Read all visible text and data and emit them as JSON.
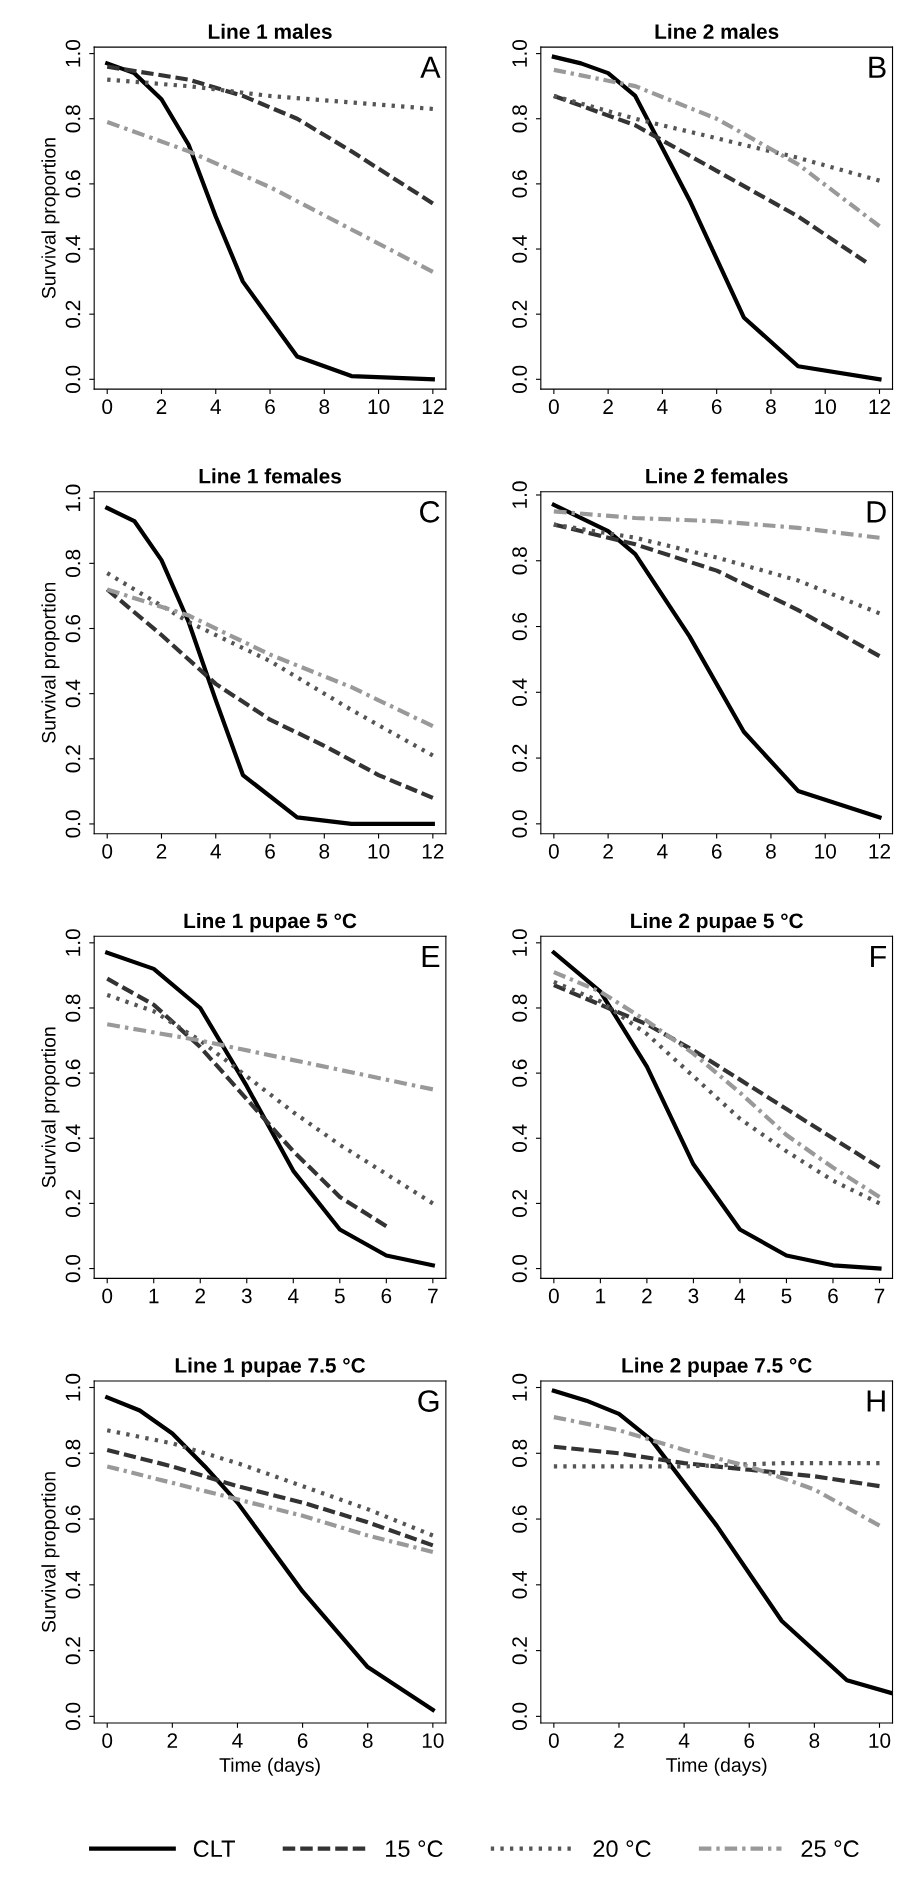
{
  "chart_data": [
    {
      "type": "line",
      "title": "Line 1 males",
      "annotations": [
        "A"
      ],
      "ylabel": "Survival proportion",
      "xlim": [
        -0.48,
        12.48
      ],
      "ylim": [
        -0.03,
        1.02
      ],
      "xticks": [
        0,
        2,
        4,
        6,
        8,
        10,
        12
      ],
      "yticks": [
        {
          "value": 0,
          "label": "0.0"
        },
        {
          "value": 0.2,
          "label": "0.2"
        },
        {
          "value": 0.4,
          "label": "0.4"
        },
        {
          "value": 0.6,
          "label": "0.6"
        },
        {
          "value": 0.8,
          "label": "0.8"
        },
        {
          "value": 1,
          "label": "1.0"
        }
      ],
      "legend": "bottom",
      "series": [
        {
          "name": "CLT",
          "color": "#000000",
          "line_style": "solid",
          "x": [
            0,
            1,
            2,
            3,
            4,
            5,
            7,
            9,
            12
          ],
          "values": [
            0.97,
            0.94,
            0.86,
            0.72,
            0.5,
            0.3,
            0.07,
            0.01,
            0.0
          ]
        },
        {
          "name": "15 °C",
          "color": "#333333",
          "line_style": "dashed",
          "x": [
            0,
            3,
            5,
            7,
            9,
            12
          ],
          "values": [
            0.96,
            0.92,
            0.87,
            0.8,
            0.7,
            0.54
          ]
        },
        {
          "name": "20 °C",
          "color": "#555555",
          "line_style": "dotted",
          "x": [
            0,
            3,
            6,
            9,
            12
          ],
          "values": [
            0.92,
            0.9,
            0.87,
            0.85,
            0.83
          ]
        },
        {
          "name": "25 °C",
          "color": "#999999",
          "line_style": "dashdot",
          "x": [
            0,
            3,
            6,
            9,
            12
          ],
          "values": [
            0.79,
            0.7,
            0.59,
            0.46,
            0.33
          ]
        }
      ]
    },
    {
      "type": "line",
      "title": "Line 2 males",
      "annotations": [
        "B"
      ],
      "xlim": [
        -0.48,
        12.48
      ],
      "ylim": [
        -0.03,
        1.02
      ],
      "xticks": [
        0,
        2,
        4,
        6,
        8,
        10,
        12
      ],
      "yticks": [
        {
          "value": 0,
          "label": "0.0"
        },
        {
          "value": 0.2,
          "label": "0.2"
        },
        {
          "value": 0.4,
          "label": "0.4"
        },
        {
          "value": 0.6,
          "label": "0.6"
        },
        {
          "value": 0.8,
          "label": "0.8"
        },
        {
          "value": 1,
          "label": "1.0"
        }
      ],
      "series": [
        {
          "color": "#000000",
          "line_style": "solid",
          "x": [
            0,
            1,
            2,
            3,
            5,
            7,
            9,
            12
          ],
          "values": [
            0.99,
            0.97,
            0.94,
            0.87,
            0.55,
            0.19,
            0.04,
            0.0
          ]
        },
        {
          "color": "#333333",
          "line_style": "dashed",
          "x": [
            0,
            3,
            6,
            9,
            11.5
          ],
          "values": [
            0.87,
            0.78,
            0.64,
            0.5,
            0.36
          ]
        },
        {
          "color": "#555555",
          "line_style": "dotted",
          "x": [
            0,
            3,
            6,
            9,
            12
          ],
          "values": [
            0.87,
            0.8,
            0.74,
            0.68,
            0.61
          ]
        },
        {
          "color": "#999999",
          "line_style": "dashdot",
          "x": [
            0,
            3,
            6,
            9,
            12
          ],
          "values": [
            0.95,
            0.9,
            0.8,
            0.66,
            0.47
          ]
        }
      ]
    },
    {
      "type": "line",
      "title": "Line 1 females",
      "annotations": [
        "C"
      ],
      "ylabel": "Survival proportion",
      "xlim": [
        -0.48,
        12.48
      ],
      "ylim": [
        -0.03,
        1.02
      ],
      "xticks": [
        0,
        2,
        4,
        6,
        8,
        10,
        12
      ],
      "yticks": [
        {
          "value": 0,
          "label": "0.0"
        },
        {
          "value": 0.2,
          "label": "0.2"
        },
        {
          "value": 0.4,
          "label": "0.4"
        },
        {
          "value": 0.6,
          "label": "0.6"
        },
        {
          "value": 0.8,
          "label": "0.8"
        },
        {
          "value": 1,
          "label": "1.0"
        }
      ],
      "series": [
        {
          "color": "#000000",
          "line_style": "solid",
          "x": [
            0,
            1,
            2,
            3,
            4,
            5,
            7,
            9,
            12
          ],
          "values": [
            0.97,
            0.93,
            0.81,
            0.62,
            0.38,
            0.15,
            0.02,
            0.0,
            0.0
          ]
        },
        {
          "color": "#333333",
          "line_style": "dashed",
          "x": [
            0,
            2,
            4,
            6,
            8,
            10,
            12
          ],
          "values": [
            0.72,
            0.58,
            0.43,
            0.32,
            0.24,
            0.15,
            0.08
          ]
        },
        {
          "color": "#555555",
          "line_style": "dotted",
          "x": [
            0,
            3,
            6,
            9,
            12
          ],
          "values": [
            0.77,
            0.62,
            0.5,
            0.35,
            0.21
          ]
        },
        {
          "color": "#999999",
          "line_style": "dashdot",
          "x": [
            0,
            3,
            6,
            9,
            12
          ],
          "values": [
            0.72,
            0.64,
            0.52,
            0.42,
            0.3
          ]
        }
      ]
    },
    {
      "type": "line",
      "title": "Line 2 females",
      "annotations": [
        "D"
      ],
      "xlim": [
        -0.48,
        12.48
      ],
      "ylim": [
        -0.03,
        1.01
      ],
      "xticks": [
        0,
        2,
        4,
        6,
        8,
        10,
        12
      ],
      "yticks": [
        {
          "value": 0,
          "label": "0.0"
        },
        {
          "value": 0.2,
          "label": "0.2"
        },
        {
          "value": 0.4,
          "label": "0.4"
        },
        {
          "value": 0.6,
          "label": "0.6"
        },
        {
          "value": 0.8,
          "label": "0.8"
        },
        {
          "value": 1,
          "label": "1.0"
        }
      ],
      "series": [
        {
          "color": "#000000",
          "line_style": "solid",
          "x": [
            0,
            2,
            3,
            5,
            7,
            9,
            12
          ],
          "values": [
            0.97,
            0.89,
            0.82,
            0.57,
            0.28,
            0.1,
            0.02
          ]
        },
        {
          "color": "#333333",
          "line_style": "dashed",
          "x": [
            0,
            3,
            6,
            9,
            12
          ],
          "values": [
            0.91,
            0.85,
            0.77,
            0.65,
            0.51
          ]
        },
        {
          "color": "#555555",
          "line_style": "dotted",
          "x": [
            0,
            3,
            6,
            9,
            12
          ],
          "values": [
            0.91,
            0.87,
            0.81,
            0.74,
            0.64
          ]
        },
        {
          "color": "#999999",
          "line_style": "dashdot",
          "x": [
            0,
            3,
            6,
            9,
            12
          ],
          "values": [
            0.95,
            0.93,
            0.92,
            0.9,
            0.87
          ]
        }
      ]
    },
    {
      "type": "line",
      "title": "Line 1 pupae 5 °C",
      "annotations": [
        "E"
      ],
      "ylabel": "Survival proportion",
      "xlim": [
        -0.28,
        7.28
      ],
      "ylim": [
        -0.03,
        1.02
      ],
      "xticks": [
        0,
        1,
        2,
        3,
        4,
        5,
        6,
        7
      ],
      "yticks": [
        {
          "value": 0,
          "label": "0.0"
        },
        {
          "value": 0.2,
          "label": "0.2"
        },
        {
          "value": 0.4,
          "label": "0.4"
        },
        {
          "value": 0.6,
          "label": "0.6"
        },
        {
          "value": 0.8,
          "label": "0.8"
        },
        {
          "value": 1,
          "label": "1.0"
        }
      ],
      "series": [
        {
          "color": "#000000",
          "line_style": "solid",
          "x": [
            0,
            1,
            2,
            3,
            4,
            5,
            6,
            7
          ],
          "values": [
            0.97,
            0.92,
            0.8,
            0.56,
            0.3,
            0.12,
            0.04,
            0.01
          ]
        },
        {
          "color": "#333333",
          "line_style": "dashed",
          "x": [
            0,
            1,
            2,
            3,
            4,
            5,
            6
          ],
          "values": [
            0.89,
            0.81,
            0.68,
            0.52,
            0.36,
            0.22,
            0.13
          ]
        },
        {
          "color": "#555555",
          "line_style": "dotted",
          "x": [
            0,
            1,
            2,
            3,
            4,
            5,
            6,
            7
          ],
          "values": [
            0.84,
            0.79,
            0.7,
            0.59,
            0.48,
            0.38,
            0.29,
            0.2
          ]
        },
        {
          "color": "#999999",
          "line_style": "dashdot",
          "x": [
            0,
            2,
            4,
            6,
            7
          ],
          "values": [
            0.75,
            0.7,
            0.64,
            0.58,
            0.55
          ]
        }
      ]
    },
    {
      "type": "line",
      "title": "Line 2 pupae 5 °C",
      "annotations": [
        "F"
      ],
      "xlim": [
        -0.28,
        7.28
      ],
      "ylim": [
        -0.03,
        1.02
      ],
      "xticks": [
        0,
        1,
        2,
        3,
        4,
        5,
        6,
        7
      ],
      "yticks": [
        {
          "value": 0,
          "label": "0.0"
        },
        {
          "value": 0.2,
          "label": "0.2"
        },
        {
          "value": 0.4,
          "label": "0.4"
        },
        {
          "value": 0.6,
          "label": "0.6"
        },
        {
          "value": 0.8,
          "label": "0.8"
        },
        {
          "value": 1,
          "label": "1.0"
        }
      ],
      "series": [
        {
          "color": "#000000",
          "line_style": "solid",
          "x": [
            0,
            1,
            2,
            3,
            4,
            5,
            6,
            7
          ],
          "values": [
            0.97,
            0.85,
            0.62,
            0.32,
            0.12,
            0.04,
            0.01,
            0.0
          ]
        },
        {
          "color": "#333333",
          "line_style": "dashed",
          "x": [
            0,
            1,
            2,
            3,
            4,
            5,
            6,
            7
          ],
          "values": [
            0.87,
            0.81,
            0.75,
            0.67,
            0.58,
            0.49,
            0.4,
            0.31
          ]
        },
        {
          "color": "#555555",
          "line_style": "dotted",
          "x": [
            0,
            1,
            2,
            3,
            4,
            5,
            6,
            7
          ],
          "values": [
            0.88,
            0.82,
            0.72,
            0.59,
            0.46,
            0.36,
            0.27,
            0.2
          ]
        },
        {
          "color": "#999999",
          "line_style": "dashdot",
          "x": [
            0,
            1,
            2,
            3,
            4,
            5,
            6,
            7
          ],
          "values": [
            0.91,
            0.85,
            0.76,
            0.66,
            0.54,
            0.41,
            0.31,
            0.22
          ]
        }
      ]
    },
    {
      "type": "line",
      "title": "Line 1 pupae 7.5 °C",
      "annotations": [
        "G"
      ],
      "ylabel": "Survival proportion",
      "xlabel": "Time (days)",
      "xlim": [
        -0.4,
        10.4
      ],
      "ylim": [
        -0.02,
        1.02
      ],
      "xticks": [
        0,
        2,
        4,
        6,
        8,
        10
      ],
      "yticks": [
        {
          "value": 0,
          "label": "0.0"
        },
        {
          "value": 0.2,
          "label": "0.2"
        },
        {
          "value": 0.4,
          "label": "0.4"
        },
        {
          "value": 0.6,
          "label": "0.6"
        },
        {
          "value": 0.8,
          "label": "0.8"
        },
        {
          "value": 1,
          "label": "1.0"
        }
      ],
      "series": [
        {
          "color": "#000000",
          "line_style": "solid",
          "x": [
            0,
            1,
            2,
            3,
            4,
            6,
            8,
            10
          ],
          "values": [
            0.97,
            0.93,
            0.86,
            0.76,
            0.65,
            0.38,
            0.15,
            0.02
          ]
        },
        {
          "color": "#333333",
          "line_style": "dashed",
          "x": [
            0,
            2,
            4,
            6,
            8,
            10
          ],
          "values": [
            0.81,
            0.76,
            0.7,
            0.65,
            0.59,
            0.52
          ]
        },
        {
          "color": "#555555",
          "line_style": "dotted",
          "x": [
            0,
            2,
            4,
            6,
            8,
            10
          ],
          "values": [
            0.87,
            0.83,
            0.77,
            0.7,
            0.63,
            0.55
          ]
        },
        {
          "color": "#999999",
          "line_style": "dashdot",
          "x": [
            0,
            2,
            4,
            6,
            8,
            10
          ],
          "values": [
            0.76,
            0.71,
            0.66,
            0.61,
            0.55,
            0.5
          ]
        }
      ]
    },
    {
      "type": "line",
      "title": "Line 2 pupae 7.5 °C",
      "annotations": [
        "H"
      ],
      "xlabel": "Time (days)",
      "xlim": [
        -0.4,
        10.4
      ],
      "ylim": [
        -0.02,
        1.02
      ],
      "xticks": [
        0,
        2,
        4,
        6,
        8,
        10
      ],
      "yticks": [
        {
          "value": 0,
          "label": "0.0"
        },
        {
          "value": 0.2,
          "label": "0.2"
        },
        {
          "value": 0.4,
          "label": "0.4"
        },
        {
          "value": 0.6,
          "label": "0.6"
        },
        {
          "value": 0.8,
          "label": "0.8"
        },
        {
          "value": 1,
          "label": "1.0"
        }
      ],
      "series": [
        {
          "color": "#000000",
          "line_style": "solid",
          "x": [
            0,
            1,
            2,
            3,
            5,
            7,
            9,
            10.4
          ],
          "values": [
            0.99,
            0.96,
            0.92,
            0.84,
            0.58,
            0.29,
            0.11,
            0.07
          ]
        },
        {
          "color": "#333333",
          "line_style": "dashed",
          "x": [
            0,
            2,
            4,
            6,
            8,
            10
          ],
          "values": [
            0.82,
            0.8,
            0.77,
            0.75,
            0.73,
            0.7
          ]
        },
        {
          "color": "#555555",
          "line_style": "dotted",
          "x": [
            0,
            4,
            7,
            10
          ],
          "values": [
            0.76,
            0.76,
            0.77,
            0.77
          ]
        },
        {
          "color": "#999999",
          "line_style": "dashdot",
          "x": [
            0,
            2,
            4,
            6,
            8,
            10
          ],
          "values": [
            0.91,
            0.87,
            0.81,
            0.76,
            0.69,
            0.58
          ]
        }
      ]
    }
  ]
}
